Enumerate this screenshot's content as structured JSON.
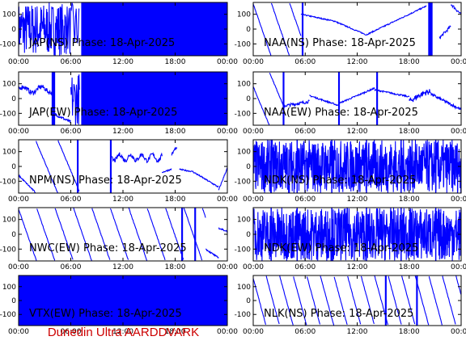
{
  "footer": "Dunedin Ultra AARDDVARK",
  "colors": {
    "trace": "#0000ff",
    "footer": "#cc0000",
    "axes": "#000000"
  },
  "chart_data": [
    {
      "type": "line",
      "title": "JAP(NS) Phase: 18-Apr-2025",
      "xticks": [
        "00:00",
        "06:00",
        "12:00",
        "18:00",
        "00:00"
      ],
      "yticks": [
        "100",
        "0",
        "-100"
      ],
      "xlim": [
        0,
        24
      ],
      "ylim": [
        -180,
        180
      ],
      "pattern": "jap_ns"
    },
    {
      "type": "line",
      "title": "NAA(NS) Phase: 18-Apr-2025",
      "xticks": [
        "00:00",
        "06:00",
        "12:00",
        "18:00",
        "00:00"
      ],
      "yticks": [
        "100",
        "0",
        "-100"
      ],
      "xlim": [
        0,
        24
      ],
      "ylim": [
        -180,
        180
      ],
      "pattern": "naa_ns"
    },
    {
      "type": "line",
      "title": "JAP(EW) Phase: 18-Apr-2025",
      "xticks": [
        "00:00",
        "06:00",
        "12:00",
        "18:00",
        "00:00"
      ],
      "yticks": [
        "100",
        "0",
        "-100"
      ],
      "xlim": [
        0,
        24
      ],
      "ylim": [
        -180,
        180
      ],
      "pattern": "jap_ew"
    },
    {
      "type": "line",
      "title": "NAA(EW) Phase: 18-Apr-2025",
      "xticks": [
        "00:00",
        "06:00",
        "12:00",
        "18:00",
        "00:00"
      ],
      "yticks": [
        "100",
        "0",
        "-100"
      ],
      "xlim": [
        0,
        24
      ],
      "ylim": [
        -180,
        180
      ],
      "pattern": "naa_ew"
    },
    {
      "type": "line",
      "title": "NPM(NS) Phase: 18-Apr-2025",
      "xticks": [
        "00:00",
        "06:00",
        "12:00",
        "18:00",
        "00:00"
      ],
      "yticks": [
        "100",
        "0",
        "-100"
      ],
      "xlim": [
        0,
        24
      ],
      "ylim": [
        -180,
        180
      ],
      "pattern": "npm_ns"
    },
    {
      "type": "line",
      "title": "NDK(NS) Phase: 18-Apr-2025",
      "xticks": [
        "00:00",
        "06:00",
        "12:00",
        "18:00",
        "00:00"
      ],
      "yticks": [
        "100",
        "0",
        "-100"
      ],
      "xlim": [
        0,
        24
      ],
      "ylim": [
        -180,
        180
      ],
      "pattern": "noise"
    },
    {
      "type": "line",
      "title": "NWC(EW) Phase: 18-Apr-2025",
      "xticks": [
        "00:00",
        "06:00",
        "12:00",
        "18:00",
        "00:00"
      ],
      "yticks": [
        "100",
        "0",
        "-100"
      ],
      "xlim": [
        0,
        24
      ],
      "ylim": [
        -180,
        180
      ],
      "pattern": "nwc_ew"
    },
    {
      "type": "line",
      "title": "NDK(EW) Phase: 18-Apr-2025",
      "xticks": [
        "00:00",
        "06:00",
        "12:00",
        "18:00",
        "00:00"
      ],
      "yticks": [
        "100",
        "0",
        "-100"
      ],
      "xlim": [
        0,
        24
      ],
      "ylim": [
        -180,
        180
      ],
      "pattern": "noise"
    },
    {
      "type": "line",
      "title": "VTX(EW) Phase: 18-Apr-2025",
      "xticks": [
        "00:00",
        "06:00",
        "12:00",
        "18:00",
        "00:00"
      ],
      "yticks": [
        "100",
        "0",
        "-100"
      ],
      "xlim": [
        0,
        24
      ],
      "ylim": [
        -180,
        180
      ],
      "pattern": "fill"
    },
    {
      "type": "line",
      "title": "NLK(NS) Phase: 18-Apr-2025",
      "xticks": [
        "00:00",
        "06:00",
        "12:00",
        "18:00",
        "00:00"
      ],
      "yticks": [
        "100",
        "0",
        "-100"
      ],
      "xlim": [
        0,
        24
      ],
      "ylim": [
        -180,
        180
      ],
      "pattern": "nlk_ns"
    }
  ]
}
